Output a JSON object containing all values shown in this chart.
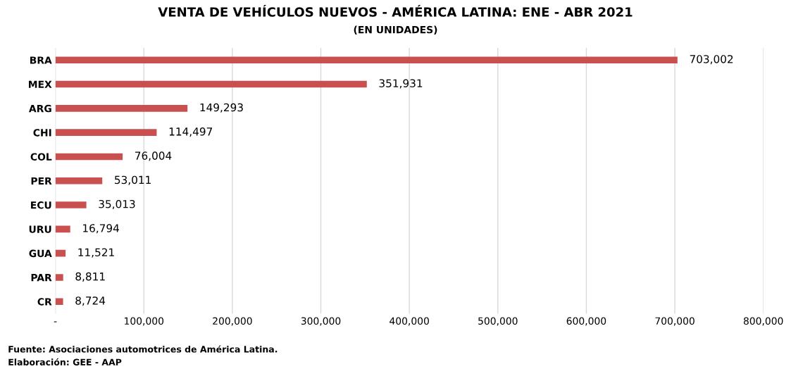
{
  "chart_data": {
    "type": "bar",
    "orientation": "horizontal",
    "title": "VENTA DE VEHÍCULOS NUEVOS - AMÉRICA LATINA: ENE - ABR 2021",
    "subtitle": "(EN UNIDADES)",
    "categories": [
      "BRA",
      "MEX",
      "ARG",
      "CHI",
      "COL",
      "PER",
      "ECU",
      "URU",
      "GUA",
      "PAR",
      "CR"
    ],
    "values": [
      703002,
      351931,
      149293,
      114497,
      76004,
      53011,
      35013,
      16794,
      11521,
      8811,
      8724
    ],
    "value_labels": [
      "703,002",
      "351,931",
      "149,293",
      "114,497",
      "76,004",
      "53,011",
      "35,013",
      "16,794",
      "11,521",
      "8,811",
      "8,724"
    ],
    "color": "#c9504f",
    "xlim": [
      0,
      800000
    ],
    "xticks": [
      {
        "value": 0,
        "label": "-"
      },
      {
        "value": 100000,
        "label": "100,000"
      },
      {
        "value": 200000,
        "label": "200,000"
      },
      {
        "value": 300000,
        "label": "300,000"
      },
      {
        "value": 400000,
        "label": "400,000"
      },
      {
        "value": 500000,
        "label": "500,000"
      },
      {
        "value": 600000,
        "label": "600,000"
      },
      {
        "value": 700000,
        "label": "700,000"
      },
      {
        "value": 800000,
        "label": "800,000"
      }
    ],
    "grid": "x",
    "legend": false,
    "annotations": [
      "Fuente: Asociaciones automotrices de América Latina.",
      "Elaboración: GEE - AAP"
    ]
  }
}
